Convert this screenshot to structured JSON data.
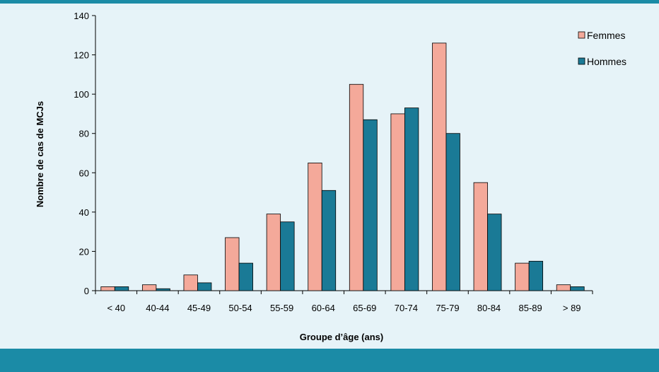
{
  "colors": {
    "background": "#e6f3f8",
    "band": "#1b8ba6",
    "femmes": "#f4a99a",
    "hommes": "#1a7a96"
  },
  "chart_data": {
    "type": "bar",
    "categories": [
      "< 40",
      "40-44",
      "45-49",
      "50-54",
      "55-59",
      "60-64",
      "65-69",
      "70-74",
      "75-79",
      "80-84",
      "85-89",
      "> 89"
    ],
    "series": [
      {
        "name": "Femmes",
        "values": [
          2,
          3,
          8,
          27,
          39,
          65,
          105,
          90,
          126,
          55,
          14,
          3
        ]
      },
      {
        "name": "Hommes",
        "values": [
          2,
          1,
          4,
          14,
          35,
          51,
          87,
          93,
          80,
          39,
          15,
          2
        ]
      }
    ],
    "xlabel": "Groupe d’âge (ans)",
    "ylabel": "Nombre de cas de MCJs",
    "ylim": [
      0,
      140
    ],
    "yticks": [
      0,
      20,
      40,
      60,
      80,
      100,
      120,
      140
    ],
    "grid": false,
    "legend_position": "top-right"
  }
}
